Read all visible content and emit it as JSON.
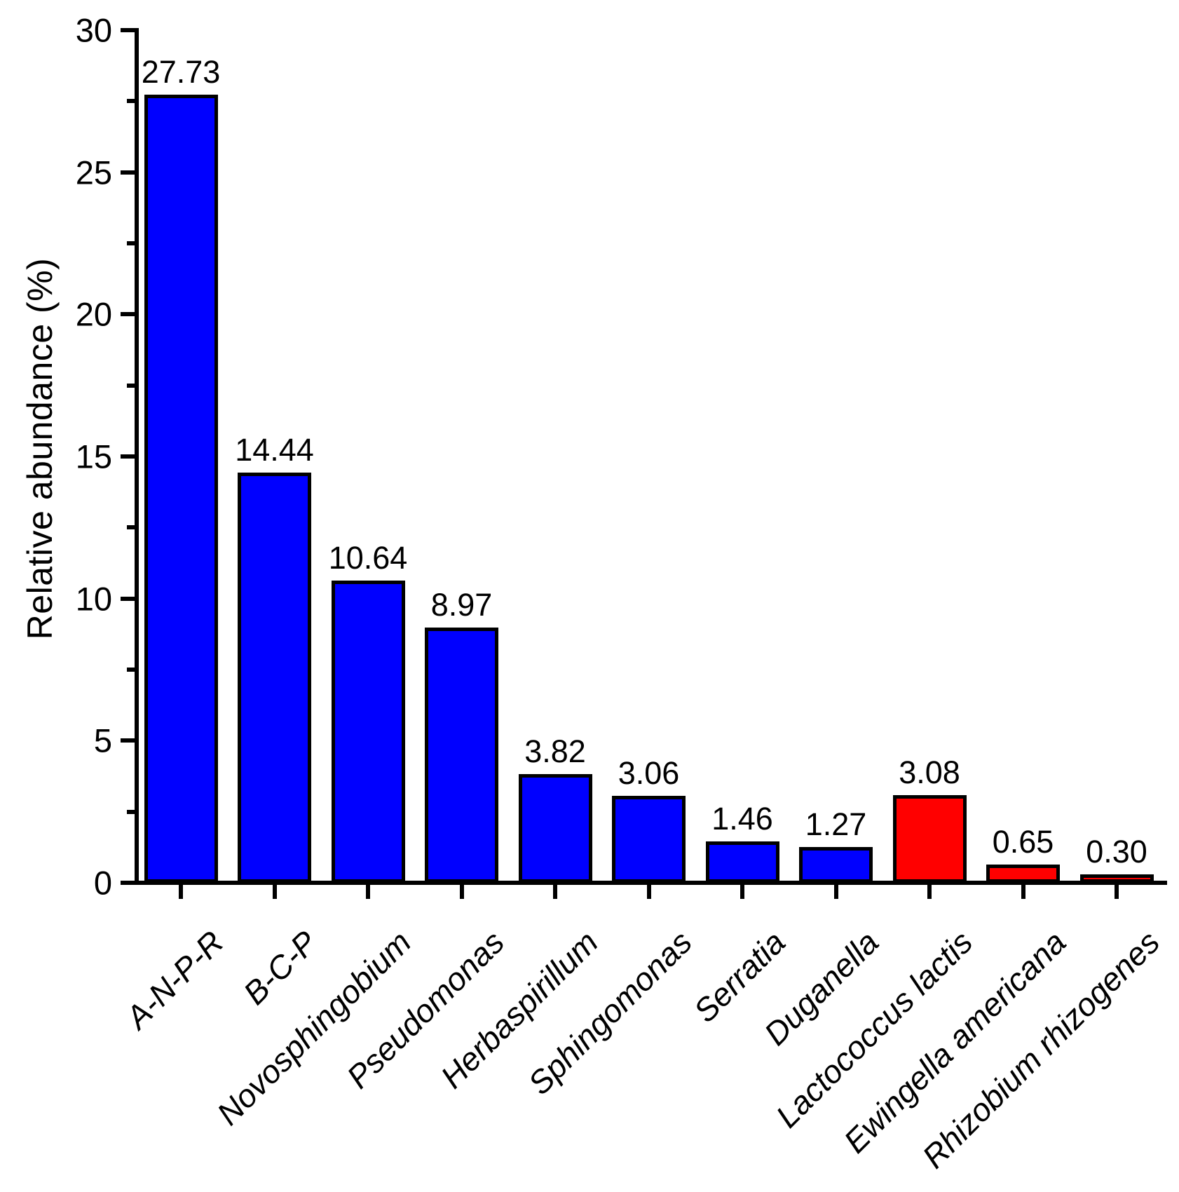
{
  "figure": {
    "background_color": "#FFFFFF",
    "text_color": "#000000"
  },
  "chart_data": {
    "type": "bar",
    "title": "",
    "xlabel": "",
    "ylabel": "Relative abundance (%)",
    "ylim": [
      0,
      30
    ],
    "ytick_major_step": 5,
    "ytick_minor_step": 2.5,
    "ytick_labels": [
      "0",
      "5",
      "10",
      "15",
      "20",
      "25",
      "30"
    ],
    "grid": false,
    "legend_position": "none",
    "categories": [
      "A-N-P-R",
      "B-C-P",
      "Novosphingobium",
      "Pseudomonas",
      "Herbaspirillum",
      "Sphingomonas",
      "Serratia",
      "Duganella",
      "Lactococcus lactis",
      "Ewingella americana",
      "Rhizobium rhizogenes"
    ],
    "values": [
      27.73,
      14.44,
      10.64,
      8.97,
      3.82,
      3.06,
      1.46,
      1.27,
      3.08,
      0.65,
      0.3
    ],
    "value_labels": [
      "27.73",
      "14.44",
      "10.64",
      "8.97",
      "3.82",
      "3.06",
      "1.46",
      "1.27",
      "3.08",
      "0.65",
      "0.30"
    ],
    "bar_colors": [
      "#0000FF",
      "#0000FF",
      "#0000FF",
      "#0000FF",
      "#0000FF",
      "#0000FF",
      "#0000FF",
      "#0000FF",
      "#FF0000",
      "#FF0000",
      "#FF0000"
    ],
    "bar_edge_color": "#000000",
    "axis_color": "#000000"
  }
}
